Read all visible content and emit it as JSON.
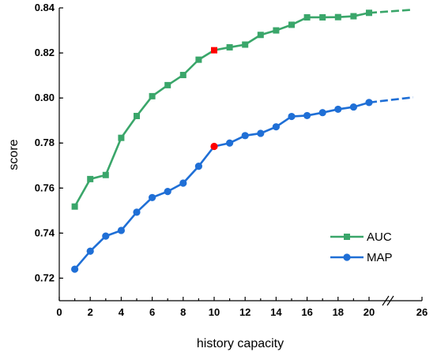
{
  "chart_data": {
    "type": "line",
    "xlabel": "history capacity",
    "ylabel": "score",
    "xlim": [
      0,
      26
    ],
    "ylim": [
      0.71,
      0.84
    ],
    "x_tick_labels": [
      "0",
      "2",
      "4",
      "6",
      "8",
      "10",
      "12",
      "14",
      "16",
      "18",
      "20",
      "26"
    ],
    "y_tick_labels": [
      "0.72",
      "0.74",
      "0.76",
      "0.78",
      "0.80",
      "0.82",
      "0.84"
    ],
    "axis_break": true,
    "grid": false,
    "legend_position": "bottom-right",
    "highlight_x": 10,
    "highlight_color": "#ff0000",
    "series": [
      {
        "name": "AUC",
        "marker": "square",
        "color": "#3aa66a",
        "x": [
          1,
          2,
          3,
          4,
          5,
          6,
          7,
          8,
          9,
          10,
          11,
          12,
          13,
          14,
          15,
          16,
          17,
          18,
          19,
          20,
          25
        ],
        "y": [
          0.7518,
          0.764,
          0.7658,
          0.7823,
          0.792,
          0.8008,
          0.8057,
          0.8102,
          0.817,
          0.8212,
          0.8225,
          0.8237,
          0.828,
          0.83,
          0.8325,
          0.8358,
          0.8358,
          0.8359,
          0.8363,
          0.8378,
          0.8392
        ]
      },
      {
        "name": "MAP",
        "marker": "circle",
        "color": "#1f6fd6",
        "x": [
          1,
          2,
          3,
          4,
          5,
          6,
          7,
          8,
          9,
          10,
          11,
          12,
          13,
          14,
          15,
          16,
          17,
          18,
          19,
          20,
          25
        ],
        "y": [
          0.724,
          0.732,
          0.7387,
          0.7412,
          0.7493,
          0.7558,
          0.7585,
          0.7622,
          0.7697,
          0.7785,
          0.78,
          0.7833,
          0.7843,
          0.7872,
          0.7918,
          0.7922,
          0.7935,
          0.795,
          0.796,
          0.798,
          0.8003
        ]
      }
    ]
  }
}
